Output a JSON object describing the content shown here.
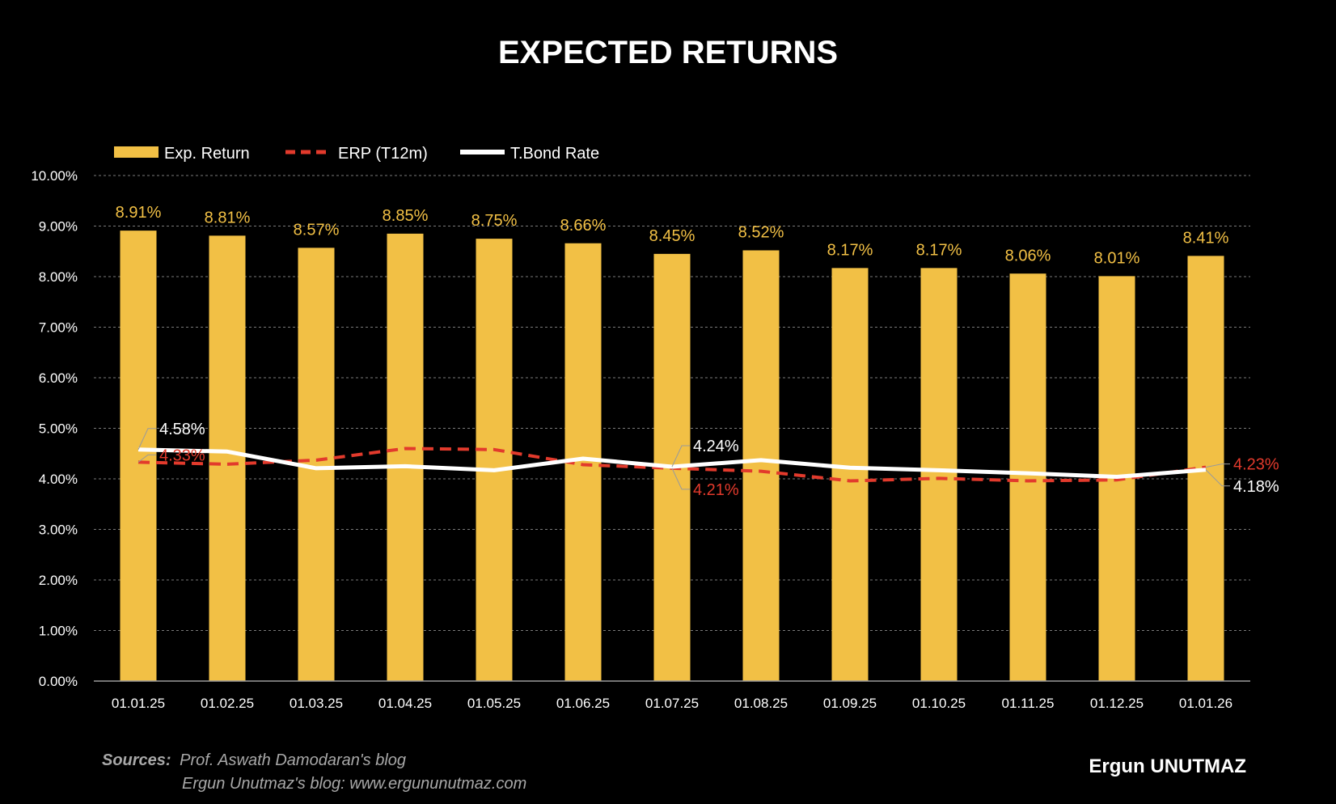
{
  "colors": {
    "background": "#000000",
    "bar": "#f2c045",
    "erp": "#e23a2c",
    "tbond": "#ffffff",
    "grid": "#7a7a7a",
    "axis_text": "#ffffff",
    "source_text": "#a8a8a8"
  },
  "chart_data": {
    "type": "bar",
    "title": "EXPECTED RETURNS",
    "categories": [
      "01.01.25",
      "01.02.25",
      "01.03.25",
      "01.04.25",
      "01.05.25",
      "01.06.25",
      "01.07.25",
      "01.08.25",
      "01.09.25",
      "01.10.25",
      "01.11.25",
      "01.12.25",
      "01.01.26"
    ],
    "ylim": [
      0,
      10
    ],
    "yticks": [
      "0.00%",
      "1.00%",
      "2.00%",
      "3.00%",
      "4.00%",
      "5.00%",
      "6.00%",
      "7.00%",
      "8.00%",
      "9.00%",
      "10.00%"
    ],
    "grid": true,
    "legend_position": "top-left",
    "series": [
      {
        "name": "Exp. Return",
        "type": "bar",
        "values": [
          8.91,
          8.81,
          8.57,
          8.85,
          8.75,
          8.66,
          8.45,
          8.52,
          8.17,
          8.17,
          8.06,
          8.01,
          8.41
        ],
        "labels": [
          "8.91%",
          "8.81%",
          "8.57%",
          "8.85%",
          "8.75%",
          "8.66%",
          "8.45%",
          "8.52%",
          "8.17%",
          "8.17%",
          "8.06%",
          "8.01%",
          "8.41%"
        ]
      },
      {
        "name": "ERP (T12m)",
        "type": "line-dashed",
        "values": [
          4.33,
          4.29,
          4.37,
          4.6,
          4.58,
          4.28,
          4.21,
          4.15,
          3.96,
          4.01,
          3.96,
          3.98,
          4.23
        ]
      },
      {
        "name": "T.Bond Rate",
        "type": "line",
        "values": [
          4.58,
          4.54,
          4.21,
          4.25,
          4.17,
          4.4,
          4.24,
          4.37,
          4.22,
          4.17,
          4.11,
          4.04,
          4.18
        ]
      }
    ],
    "annotations": [
      {
        "series": "T.Bond Rate",
        "index": 0,
        "text": "4.58%",
        "placement": "above-right"
      },
      {
        "series": "ERP (T12m)",
        "index": 0,
        "text": "4.33%",
        "placement": "above-right-low"
      },
      {
        "series": "T.Bond Rate",
        "index": 6,
        "text": "4.24%",
        "placement": "above-right"
      },
      {
        "series": "ERP (T12m)",
        "index": 6,
        "text": "4.21%",
        "placement": "below-right"
      },
      {
        "series": "ERP (T12m)",
        "index": 12,
        "text": "4.23%",
        "placement": "right-high"
      },
      {
        "series": "T.Bond Rate",
        "index": 12,
        "text": "4.18%",
        "placement": "right-low"
      }
    ]
  },
  "sources": {
    "label": "Sources:",
    "line1": "Prof. Aswath Damodaran's blog",
    "line2": "Ergun Unutmaz's blog: www.ergununutmaz.com"
  },
  "author": "Ergun UNUTMAZ"
}
